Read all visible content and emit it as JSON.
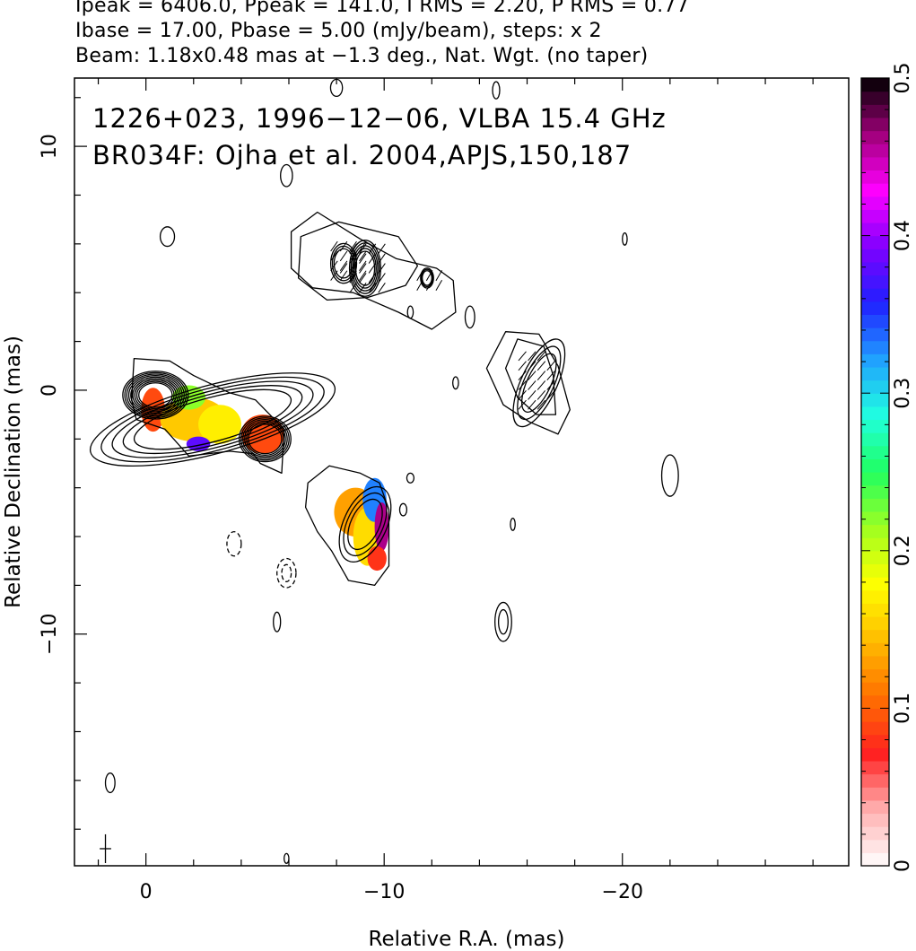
{
  "header": {
    "line1": "Ipeak = 6406.0, Ppeak = 141.0, I RMS = 2.20, P RMS = 0.77",
    "line2": "Ibase = 17.00, Pbase = 5.00 (mJy/beam), steps: x 2",
    "line3": "Beam: 1.18x0.48 mas at −1.3 deg., Nat. Wgt. (no taper)"
  },
  "chart_data": {
    "type": "heatmap",
    "title": "1226+023, 1996−12−06, VLBA 15.4 GHz",
    "subtitle": "BR034F: Ojha et al. 2004,APJS,150,187",
    "xlabel": "Relative R.A. (mas)",
    "ylabel": "Relative Declination (mas)",
    "xlim": [
      3,
      -29.5
    ],
    "ylim": [
      -19.5,
      12.8
    ],
    "x_ticks": [
      {
        "v": 0,
        "label": "0"
      },
      {
        "v": -10,
        "label": "−10"
      },
      {
        "v": -20,
        "label": "−20"
      }
    ],
    "y_ticks": [
      {
        "v": 10,
        "label": "10"
      },
      {
        "v": 0,
        "label": "0"
      },
      {
        "v": -10,
        "label": "−10"
      }
    ],
    "colorbar": {
      "vmin": 0,
      "vmax": 0.5,
      "ticks": [
        {
          "v": 0,
          "label": "0"
        },
        {
          "v": 0.1,
          "label": "0.1"
        },
        {
          "v": 0.2,
          "label": "0.2"
        },
        {
          "v": 0.3,
          "label": "0.3"
        },
        {
          "v": 0.4,
          "label": "0.4"
        },
        {
          "v": 0.5,
          "label": "0.5"
        }
      ],
      "colors": [
        "#ffffff",
        "#ffb0b0",
        "#ff2020",
        "#ff7000",
        "#ffbb00",
        "#ffff00",
        "#a0ff20",
        "#20ff60",
        "#20ffe0",
        "#20a0ff",
        "#2020ff",
        "#8000ff",
        "#ff00ff",
        "#a0007a",
        "#000000"
      ]
    },
    "fractional_pol_patches": [
      {
        "x": -0.3,
        "y": -0.8,
        "rx": 0.5,
        "ry": 0.9,
        "v": 0.09
      },
      {
        "x": -2.0,
        "y": -1.2,
        "rx": 1.4,
        "ry": 0.9,
        "v": 0.15
      },
      {
        "x": -3.1,
        "y": -1.4,
        "rx": 0.9,
        "ry": 0.8,
        "v": 0.17
      },
      {
        "x": -1.8,
        "y": -0.3,
        "rx": 0.7,
        "ry": 0.5,
        "v": 0.22
      },
      {
        "x": -2.2,
        "y": -2.2,
        "rx": 0.5,
        "ry": 0.3,
        "v": 0.38
      },
      {
        "x": -4.9,
        "y": -1.8,
        "rx": 0.9,
        "ry": 0.8,
        "v": 0.09
      },
      {
        "x": -8.8,
        "y": -5.0,
        "rx": 0.9,
        "ry": 1.0,
        "v": 0.13
      },
      {
        "x": -9.3,
        "y": -6.0,
        "rx": 0.6,
        "ry": 1.2,
        "v": 0.16
      },
      {
        "x": -9.6,
        "y": -4.5,
        "rx": 0.5,
        "ry": 0.9,
        "v": 0.33
      },
      {
        "x": -9.9,
        "y": -5.6,
        "rx": 0.3,
        "ry": 1.0,
        "v": 0.46
      },
      {
        "x": -9.7,
        "y": -6.9,
        "rx": 0.4,
        "ry": 0.5,
        "v": 0.08
      }
    ],
    "contour_groups": [
      {
        "cx": -0.4,
        "cy": -0.2,
        "rx": 0.7,
        "ry": 0.5,
        "rot": 0,
        "n": 9,
        "step": 0.12
      },
      {
        "cx": -2.8,
        "cy": -1.2,
        "rx": 3.4,
        "ry": 0.9,
        "rot": -15,
        "n": 5,
        "step": 0.14
      },
      {
        "cx": -5.0,
        "cy": -2.0,
        "rx": 0.7,
        "ry": 0.6,
        "rot": 0,
        "n": 6,
        "step": 0.11
      },
      {
        "cx": -9.2,
        "cy": -5.5,
        "rx": 0.6,
        "ry": 1.1,
        "rot": 25,
        "n": 3,
        "step": 0.25
      },
      {
        "cx": -8.3,
        "cy": 5.2,
        "rx": 0.4,
        "ry": 0.6,
        "rot": 0,
        "n": 3,
        "step": 0.18
      },
      {
        "cx": -9.2,
        "cy": 5.0,
        "rx": 0.4,
        "ry": 0.7,
        "rot": 0,
        "n": 5,
        "step": 0.16
      },
      {
        "cx": -11.8,
        "cy": 4.6,
        "rx": 0.2,
        "ry": 0.3,
        "rot": 0,
        "n": 3,
        "step": 0.18
      },
      {
        "cx": -16.5,
        "cy": 0.3,
        "rx": 0.5,
        "ry": 1.3,
        "rot": 25,
        "n": 3,
        "step": 0.25
      }
    ],
    "contour_paths": [
      [
        [
          0.6,
          -0.4
        ],
        [
          0.5,
          1.3
        ],
        [
          -1.0,
          1.2
        ],
        [
          -2.0,
          0.6
        ],
        [
          -3.5,
          -0.1
        ],
        [
          -4.6,
          -0.4
        ],
        [
          -5.8,
          -1.6
        ],
        [
          -5.7,
          -3.4
        ],
        [
          -4.8,
          -3.0
        ],
        [
          -4.5,
          -2.6
        ],
        [
          -3.5,
          -2.5
        ],
        [
          -1.8,
          -2.7
        ],
        [
          -0.8,
          -1.6
        ],
        [
          0.4,
          -1.2
        ]
      ],
      [
        [
          -7.7,
          -3.1
        ],
        [
          -9.0,
          -3.4
        ],
        [
          -9.8,
          -3.8
        ],
        [
          -10.2,
          -4.9
        ],
        [
          -10.2,
          -7.2
        ],
        [
          -9.6,
          -8.0
        ],
        [
          -8.5,
          -7.8
        ],
        [
          -7.8,
          -6.6
        ],
        [
          -7.2,
          -5.8
        ],
        [
          -6.7,
          -4.8
        ],
        [
          -6.8,
          -3.8
        ]
      ],
      [
        [
          -6.1,
          6.5
        ],
        [
          -7.2,
          7.3
        ],
        [
          -9.0,
          6.2
        ],
        [
          -10.5,
          5.4
        ],
        [
          -12.2,
          5.0
        ],
        [
          -12.9,
          4.5
        ],
        [
          -13.0,
          3.2
        ],
        [
          -12.0,
          2.5
        ],
        [
          -10.6,
          3.2
        ],
        [
          -8.7,
          4.0
        ],
        [
          -7.0,
          4.2
        ],
        [
          -6.1,
          5.0
        ]
      ],
      [
        [
          -15.1,
          2.4
        ],
        [
          -16.5,
          2.3
        ],
        [
          -17.3,
          1.0
        ],
        [
          -17.8,
          -0.8
        ],
        [
          -17.3,
          -1.8
        ],
        [
          -16.1,
          -1.3
        ],
        [
          -15.0,
          -0.6
        ],
        [
          -14.3,
          0.9
        ]
      ],
      [
        [
          -6.5,
          6.3
        ],
        [
          -8.1,
          6.9
        ],
        [
          -10.6,
          6.3
        ],
        [
          -11.4,
          5.1
        ],
        [
          -10.9,
          4.3
        ],
        [
          -9.3,
          3.8
        ],
        [
          -7.6,
          3.7
        ],
        [
          -6.4,
          4.6
        ]
      ],
      [
        [
          -15.6,
          2.1
        ],
        [
          -16.7,
          1.8
        ],
        [
          -17.1,
          0.6
        ],
        [
          -17.2,
          -1.0
        ],
        [
          -16.4,
          -1.0
        ],
        [
          -15.6,
          -0.3
        ],
        [
          -15.1,
          0.9
        ]
      ]
    ],
    "small_contours": [
      {
        "x": -8.0,
        "y": 12.4,
        "rx": 0.25,
        "ry": 0.35
      },
      {
        "x": -14.7,
        "y": 12.3,
        "rx": 0.15,
        "ry": 0.35
      },
      {
        "x": -5.9,
        "y": 8.8,
        "rx": 0.25,
        "ry": 0.45
      },
      {
        "x": -0.9,
        "y": 6.3,
        "rx": 0.3,
        "ry": 0.4
      },
      {
        "x": -20.1,
        "y": 6.2,
        "rx": 0.1,
        "ry": 0.25
      },
      {
        "x": -13.6,
        "y": 3.0,
        "rx": 0.2,
        "ry": 0.45
      },
      {
        "x": -11.1,
        "y": 3.2,
        "rx": 0.12,
        "ry": 0.25
      },
      {
        "x": -13.0,
        "y": 0.3,
        "rx": 0.12,
        "ry": 0.25
      },
      {
        "x": -11.1,
        "y": -3.6,
        "rx": 0.15,
        "ry": 0.2
      },
      {
        "x": -10.8,
        "y": -4.9,
        "rx": 0.15,
        "ry": 0.25
      },
      {
        "x": -15.4,
        "y": -5.5,
        "rx": 0.1,
        "ry": 0.25
      },
      {
        "x": -22.0,
        "y": -3.5,
        "rx": 0.35,
        "ry": 0.85
      },
      {
        "x": -15.0,
        "y": -9.5,
        "rx": 0.35,
        "ry": 0.8
      },
      {
        "x": -15.0,
        "y": -9.5,
        "rx": 0.2,
        "ry": 0.5
      },
      {
        "x": -5.5,
        "y": -9.5,
        "rx": 0.15,
        "ry": 0.4
      },
      {
        "x": 1.5,
        "y": -16.1,
        "rx": 0.2,
        "ry": 0.4
      },
      {
        "x": -5.9,
        "y": -19.2,
        "rx": 0.1,
        "ry": 0.2
      }
    ],
    "dashed_contours": [
      {
        "x": -3.7,
        "y": -6.3,
        "rx": 0.3,
        "ry": 0.5
      },
      {
        "x": -5.9,
        "y": -7.5,
        "rx": 0.4,
        "ry": 0.6
      },
      {
        "x": -5.9,
        "y": -7.5,
        "rx": 0.2,
        "ry": 0.35
      }
    ],
    "evpa_regions": [
      {
        "x": -8.4,
        "y": 5.3,
        "rx": 0.9,
        "ry": 1.0,
        "angle": 55
      },
      {
        "x": -9.3,
        "y": 5.0,
        "rx": 1.0,
        "ry": 1.2,
        "angle": 55
      },
      {
        "x": -11.8,
        "y": 4.6,
        "rx": 0.7,
        "ry": 0.5,
        "angle": 60
      },
      {
        "x": -16.3,
        "y": 0.4,
        "rx": 0.9,
        "ry": 1.4,
        "angle": 50
      }
    ],
    "beam": {
      "x": 1.7,
      "y": -18.8,
      "major": 1.18,
      "minor": 0.48,
      "pa": -1.3
    }
  }
}
